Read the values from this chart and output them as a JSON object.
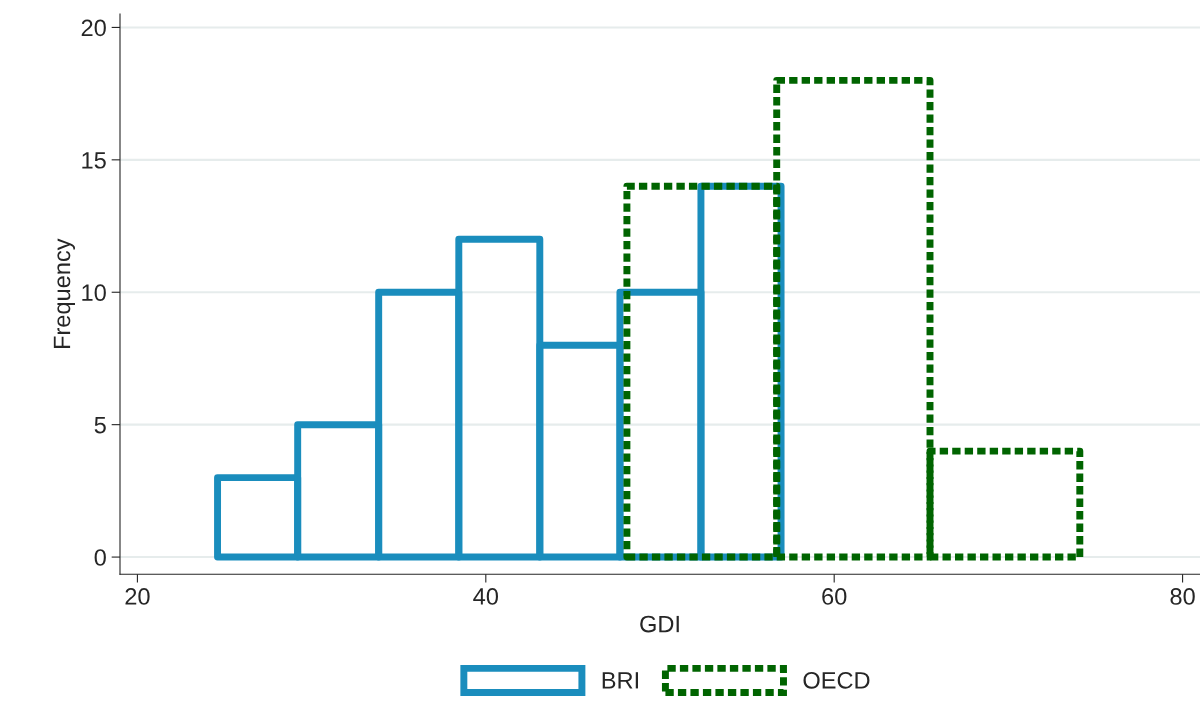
{
  "chart_data": [
    {
      "type": "histogram",
      "xlabel": "GDI",
      "ylabel": "Frequency",
      "bins": [
        24.6,
        29.2,
        33.85,
        38.45,
        43.1,
        47.7,
        52.35,
        56.95
      ],
      "series": [
        {
          "name": "BRI",
          "color": "#1a8dbd",
          "values": [
            3,
            5,
            10,
            12,
            8,
            10,
            14
          ]
        }
      ],
      "line_style": "solid",
      "xlim": [
        19,
        81
      ],
      "xticks": [
        20,
        40,
        60,
        80
      ],
      "ylim": [
        -0.65,
        20.5
      ],
      "yticks": [
        0,
        5,
        10,
        15,
        20
      ],
      "grid": "y",
      "legend": "bottom"
    },
    {
      "type": "histogram",
      "bins": [
        48.1,
        56.7,
        65.5,
        74.1
      ],
      "series": [
        {
          "name": "OECD",
          "color": "#006400",
          "values": [
            14,
            18,
            4
          ]
        }
      ],
      "line_style": "dotted",
      "xlim": [
        19,
        81
      ],
      "ylim": [
        -0.65,
        20.5
      ],
      "tick_labels": false,
      "legend": "bottom"
    }
  ]
}
